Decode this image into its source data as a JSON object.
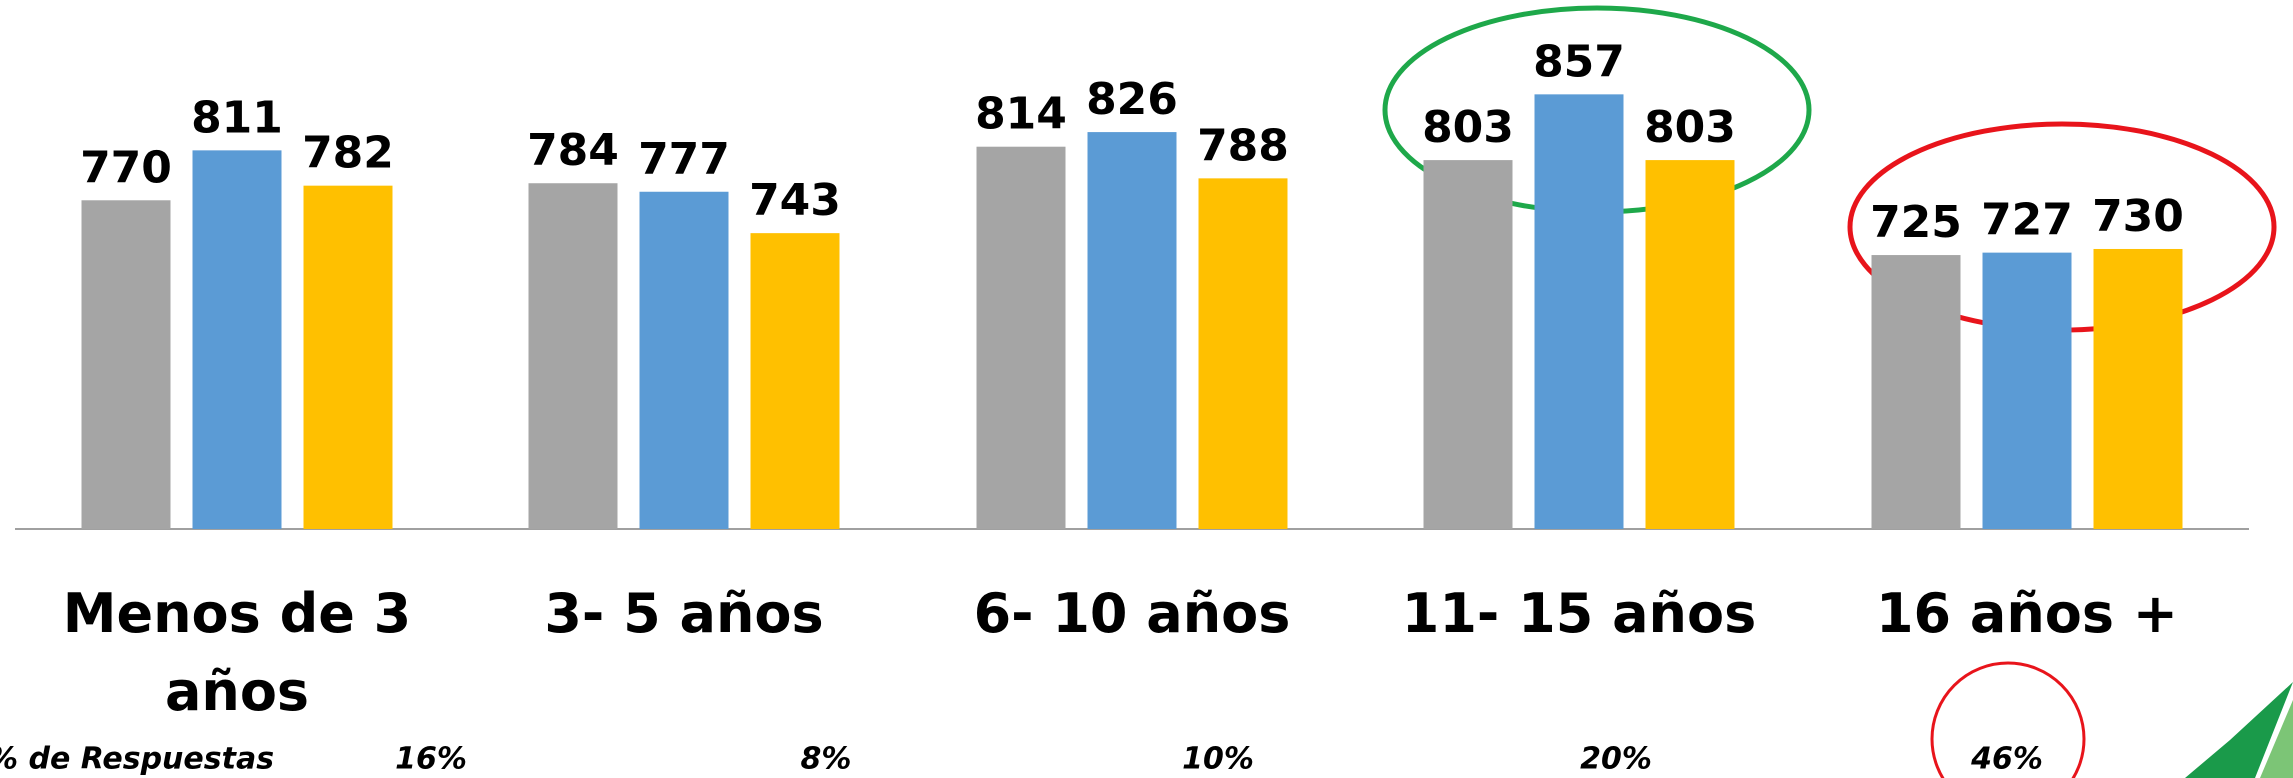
{
  "chart_data": {
    "type": "bar",
    "categories": [
      "Menos de 3 años",
      "3- 5 años",
      "6- 10 años",
      "11- 15 años",
      "16 años +"
    ],
    "series": [
      {
        "color": "#a5a5a5",
        "values": [
          770,
          784,
          814,
          803,
          725
        ]
      },
      {
        "color": "#5b9bd5",
        "values": [
          811,
          777,
          826,
          857,
          727
        ]
      },
      {
        "color": "#ffc000",
        "values": [
          782,
          743,
          788,
          803,
          730
        ]
      }
    ],
    "ylim": [
      500,
      900
    ],
    "row_label": "% de Respuestas",
    "shares": [
      16,
      8,
      10,
      20,
      46
    ],
    "share_labels": [
      "16%",
      "8%",
      "10%",
      "20%",
      "46%"
    ]
  }
}
